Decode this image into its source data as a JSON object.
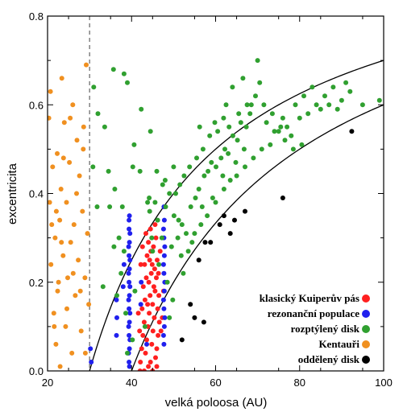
{
  "chart_data": {
    "type": "scatter",
    "xlabel": "velká poloosa (AU)",
    "ylabel": "excentricita",
    "xlim": [
      20,
      100
    ],
    "ylim": [
      0,
      0.8
    ],
    "xticks": [
      20,
      40,
      60,
      80,
      100
    ],
    "yticks": [
      0.0,
      0.2,
      0.4,
      0.6,
      0.8
    ],
    "xtick_labels": [
      "20",
      "40",
      "60",
      "80",
      "100"
    ],
    "ytick_labels": [
      "0.0",
      "0.2",
      "0.4",
      "0.6",
      "0.8"
    ],
    "grid": false,
    "legend_position": "bottom-right",
    "neptune_line": {
      "x": 30,
      "style": "dashed"
    },
    "perihelion_curves": [
      {
        "q": 30
      },
      {
        "q": 40
      }
    ],
    "series": [
      {
        "name": "klasický Kuiperův pás",
        "color": "#ff2020",
        "points": [
          [
            42.1,
            0.02
          ],
          [
            42.4,
            0.05
          ],
          [
            42.7,
            0.08
          ],
          [
            43.0,
            0.11
          ],
          [
            43.3,
            0.04
          ],
          [
            43.6,
            0.07
          ],
          [
            43.9,
            0.1
          ],
          [
            44.2,
            0.13
          ],
          [
            44.5,
            0.02
          ],
          [
            44.8,
            0.06
          ],
          [
            45.1,
            0.09
          ],
          [
            45.4,
            0.12
          ],
          [
            45.7,
            0.03
          ],
          [
            46.0,
            0.05
          ],
          [
            46.3,
            0.08
          ],
          [
            46.6,
            0.11
          ],
          [
            42.5,
            0.14
          ],
          [
            43.2,
            0.16
          ],
          [
            43.8,
            0.15
          ],
          [
            44.4,
            0.17
          ],
          [
            45.0,
            0.15
          ],
          [
            45.6,
            0.18
          ],
          [
            46.2,
            0.14
          ],
          [
            42.8,
            0.19
          ],
          [
            43.5,
            0.21
          ],
          [
            44.1,
            0.2
          ],
          [
            44.7,
            0.22
          ],
          [
            45.3,
            0.19
          ],
          [
            45.9,
            0.21
          ],
          [
            46.5,
            0.17
          ],
          [
            43.1,
            0.24
          ],
          [
            43.7,
            0.26
          ],
          [
            44.3,
            0.25
          ],
          [
            44.9,
            0.24
          ],
          [
            45.5,
            0.23
          ],
          [
            46.1,
            0.25
          ],
          [
            42.6,
            0.28
          ],
          [
            44.0,
            0.29
          ],
          [
            45.2,
            0.28
          ],
          [
            46.4,
            0.22
          ],
          [
            43.4,
            0.31
          ],
          [
            44.6,
            0.27
          ],
          [
            45.8,
            0.3
          ],
          [
            47.0,
            0.09
          ],
          [
            47.3,
            0.12
          ],
          [
            47.6,
            0.18
          ],
          [
            41.9,
            0.09
          ],
          [
            41.6,
            0.13
          ],
          [
            42.2,
            0.24
          ],
          [
            46.8,
            0.27
          ],
          [
            42.0,
            0.0
          ],
          [
            43.0,
            0.0
          ],
          [
            44.0,
            0.01
          ],
          [
            45.0,
            0.0
          ],
          [
            46.0,
            0.01
          ],
          [
            44.5,
            0.32
          ],
          [
            45.6,
            0.33
          ]
        ]
      },
      {
        "name": "rezonanční populace",
        "color": "#2020ee",
        "points": [
          [
            39.4,
            0.02
          ],
          [
            39.5,
            0.05
          ],
          [
            39.4,
            0.08
          ],
          [
            39.5,
            0.11
          ],
          [
            39.4,
            0.14
          ],
          [
            39.5,
            0.17
          ],
          [
            39.4,
            0.2
          ],
          [
            39.5,
            0.23
          ],
          [
            39.4,
            0.26
          ],
          [
            39.5,
            0.29
          ],
          [
            39.4,
            0.32
          ],
          [
            39.5,
            0.35
          ],
          [
            39.3,
            0.04
          ],
          [
            39.6,
            0.07
          ],
          [
            39.3,
            0.1
          ],
          [
            39.6,
            0.13
          ],
          [
            39.3,
            0.16
          ],
          [
            39.6,
            0.19
          ],
          [
            39.3,
            0.22
          ],
          [
            39.6,
            0.25
          ],
          [
            39.3,
            0.28
          ],
          [
            39.6,
            0.31
          ],
          [
            39.4,
            0.34
          ],
          [
            39.5,
            0.01
          ],
          [
            47.7,
            0.06
          ],
          [
            47.8,
            0.1
          ],
          [
            47.7,
            0.14
          ],
          [
            47.8,
            0.18
          ],
          [
            47.7,
            0.22
          ],
          [
            47.8,
            0.26
          ],
          [
            47.7,
            0.3
          ],
          [
            47.8,
            0.34
          ],
          [
            47.7,
            0.37
          ],
          [
            47.6,
            0.08
          ],
          [
            47.9,
            0.12
          ],
          [
            47.6,
            0.16
          ],
          [
            47.9,
            0.2
          ],
          [
            47.6,
            0.24
          ],
          [
            47.9,
            0.28
          ],
          [
            47.6,
            0.32
          ],
          [
            36.4,
            0.08
          ],
          [
            36.5,
            0.12
          ],
          [
            36.4,
            0.16
          ],
          [
            30.2,
            0.05
          ],
          [
            30.4,
            0.02
          ],
          [
            38.0,
            0.19
          ],
          [
            38.2,
            0.24
          ],
          [
            42.2,
            0.15
          ],
          [
            42.3,
            0.2
          ],
          [
            43.6,
            0.06
          ]
        ]
      },
      {
        "name": "rozptýlený disk",
        "color": "#30a030",
        "points": [
          [
            35.7,
            0.68
          ],
          [
            38.2,
            0.67
          ],
          [
            39.0,
            0.65
          ],
          [
            42.3,
            0.59
          ],
          [
            40.3,
            0.46
          ],
          [
            42.0,
            0.45
          ],
          [
            43.8,
            0.38
          ],
          [
            44.2,
            0.39
          ],
          [
            44.3,
            0.36
          ],
          [
            45.6,
            0.38
          ],
          [
            46.2,
            0.34
          ],
          [
            47.4,
            0.42
          ],
          [
            48.1,
            0.37
          ],
          [
            49.0,
            0.4
          ],
          [
            50.1,
            0.35
          ],
          [
            51.2,
            0.34
          ],
          [
            52.0,
            0.33
          ],
          [
            53.0,
            0.31
          ],
          [
            54.1,
            0.37
          ],
          [
            55.2,
            0.39
          ],
          [
            56.0,
            0.41
          ],
          [
            57.3,
            0.44
          ],
          [
            58.2,
            0.45
          ],
          [
            59.0,
            0.47
          ],
          [
            60.1,
            0.46
          ],
          [
            61.3,
            0.48
          ],
          [
            62.2,
            0.5
          ],
          [
            63.0,
            0.49
          ],
          [
            64.1,
            0.53
          ],
          [
            65.2,
            0.52
          ],
          [
            66.0,
            0.56
          ],
          [
            67.3,
            0.55
          ],
          [
            68.2,
            0.58
          ],
          [
            70.0,
            0.7
          ],
          [
            72.1,
            0.56
          ],
          [
            75.0,
            0.54
          ],
          [
            78.0,
            0.53
          ],
          [
            80.0,
            0.57
          ],
          [
            82.0,
            0.58
          ],
          [
            84.0,
            0.6
          ],
          [
            86.0,
            0.62
          ],
          [
            88.0,
            0.64
          ],
          [
            90.0,
            0.61
          ],
          [
            92.0,
            0.63
          ],
          [
            95.0,
            0.6
          ],
          [
            99.0,
            0.61
          ],
          [
            48.0,
            0.43
          ],
          [
            47.2,
            0.3
          ],
          [
            45.0,
            0.27
          ],
          [
            46.5,
            0.24
          ],
          [
            44.8,
            0.3
          ],
          [
            49.5,
            0.28
          ],
          [
            51.0,
            0.3
          ],
          [
            53.5,
            0.27
          ],
          [
            55.0,
            0.31
          ],
          [
            56.5,
            0.33
          ],
          [
            58.0,
            0.35
          ],
          [
            60.0,
            0.38
          ],
          [
            62.0,
            0.41
          ],
          [
            63.5,
            0.43
          ],
          [
            65.0,
            0.44
          ],
          [
            67.0,
            0.46
          ],
          [
            69.0,
            0.48
          ],
          [
            71.0,
            0.5
          ],
          [
            73.0,
            0.51
          ],
          [
            74.0,
            0.54
          ],
          [
            76.0,
            0.57
          ],
          [
            77.0,
            0.55
          ],
          [
            79.0,
            0.6
          ],
          [
            81.0,
            0.62
          ],
          [
            83.0,
            0.64
          ],
          [
            85.0,
            0.59
          ],
          [
            87.0,
            0.6
          ],
          [
            89.0,
            0.59
          ],
          [
            91.0,
            0.65
          ],
          [
            60.5,
            0.54
          ],
          [
            62.5,
            0.6
          ],
          [
            64.0,
            0.64
          ],
          [
            66.5,
            0.66
          ],
          [
            68.5,
            0.6
          ],
          [
            57.0,
            0.5
          ],
          [
            55.5,
            0.48
          ],
          [
            53.8,
            0.46
          ],
          [
            52.5,
            0.44
          ],
          [
            51.5,
            0.42
          ],
          [
            50.5,
            0.4
          ],
          [
            50.0,
            0.46
          ],
          [
            46.0,
            0.45
          ],
          [
            44.5,
            0.54
          ],
          [
            40.6,
            0.51
          ],
          [
            37.8,
            0.37
          ],
          [
            36.0,
            0.41
          ],
          [
            34.5,
            0.45
          ],
          [
            33.6,
            0.55
          ],
          [
            32.0,
            0.58
          ],
          [
            31.0,
            0.64
          ],
          [
            30.8,
            0.46
          ],
          [
            31.8,
            0.37
          ],
          [
            34.8,
            0.37
          ],
          [
            33.2,
            0.19
          ],
          [
            35.8,
            0.28
          ],
          [
            37.0,
            0.3
          ],
          [
            38.2,
            0.27
          ],
          [
            37.5,
            0.22
          ],
          [
            38.6,
            0.13
          ],
          [
            36.5,
            0.17
          ],
          [
            43.2,
            0.1
          ],
          [
            40.8,
            0.18
          ],
          [
            40.2,
            0.07
          ],
          [
            39.0,
            0.04
          ],
          [
            48.5,
            0.2
          ],
          [
            49.8,
            0.16
          ],
          [
            49.0,
            0.12
          ],
          [
            51.8,
            0.26
          ],
          [
            52.3,
            0.22
          ],
          [
            54.4,
            0.29
          ],
          [
            56.8,
            0.37
          ],
          [
            59.3,
            0.39
          ],
          [
            61.7,
            0.44
          ],
          [
            58.6,
            0.53
          ],
          [
            56.2,
            0.55
          ],
          [
            59.8,
            0.56
          ],
          [
            61.9,
            0.57
          ],
          [
            63.2,
            0.55
          ],
          [
            65.5,
            0.58
          ],
          [
            67.5,
            0.6
          ],
          [
            69.5,
            0.62
          ],
          [
            70.5,
            0.65
          ],
          [
            71.5,
            0.6
          ],
          [
            73.5,
            0.58
          ],
          [
            75.5,
            0.55
          ],
          [
            76.5,
            0.52
          ],
          [
            78.5,
            0.5
          ],
          [
            80.5,
            0.51
          ],
          [
            64.8,
            0.47
          ],
          [
            66.8,
            0.5
          ]
        ]
      },
      {
        "name": "Kentauři",
        "color": "#f09020",
        "points": [
          [
            20.3,
            0.57
          ],
          [
            20.5,
            0.38
          ],
          [
            20.8,
            0.24
          ],
          [
            21.2,
            0.46
          ],
          [
            21.5,
            0.13
          ],
          [
            21.8,
            0.3
          ],
          [
            22.0,
            0.06
          ],
          [
            22.3,
            0.49
          ],
          [
            22.6,
            0.2
          ],
          [
            22.9,
            0.34
          ],
          [
            23.2,
            0.41
          ],
          [
            23.4,
            0.66
          ],
          [
            23.7,
            0.26
          ],
          [
            24.0,
            0.56
          ],
          [
            24.3,
            0.1
          ],
          [
            24.5,
            0.38
          ],
          [
            24.8,
            0.21
          ],
          [
            25.2,
            0.47
          ],
          [
            25.5,
            0.29
          ],
          [
            25.8,
            0.04
          ],
          [
            26.0,
            0.6
          ],
          [
            26.3,
            0.33
          ],
          [
            26.6,
            0.17
          ],
          [
            27.0,
            0.52
          ],
          [
            27.3,
            0.25
          ],
          [
            27.6,
            0.44
          ],
          [
            28.0,
            0.09
          ],
          [
            28.3,
            0.36
          ],
          [
            28.6,
            0.55
          ],
          [
            28.9,
            0.21
          ],
          [
            29.2,
            0.69
          ],
          [
            29.5,
            0.31
          ],
          [
            29.8,
            0.15
          ],
          [
            20.7,
            0.63
          ],
          [
            21.0,
            0.33
          ],
          [
            21.6,
            0.1
          ],
          [
            22.1,
            0.36
          ],
          [
            23.0,
            0.01
          ],
          [
            23.8,
            0.48
          ],
          [
            24.6,
            0.14
          ],
          [
            25.4,
            0.57
          ],
          [
            26.1,
            0.22
          ],
          [
            26.9,
            0.4
          ],
          [
            27.8,
            0.18
          ],
          [
            28.5,
            0.5
          ],
          [
            29.0,
            0.04
          ],
          [
            22.4,
            0.18
          ],
          [
            23.3,
            0.29
          ]
        ]
      },
      {
        "name": "oddělený disk",
        "color": "#000000",
        "points": [
          [
            54.0,
            0.15
          ],
          [
            55.0,
            0.12
          ],
          [
            56.0,
            0.25
          ],
          [
            57.5,
            0.29
          ],
          [
            58.8,
            0.29
          ],
          [
            61.0,
            0.33
          ],
          [
            62.0,
            0.35
          ],
          [
            63.5,
            0.31
          ],
          [
            64.5,
            0.34
          ],
          [
            67.0,
            0.36
          ],
          [
            76.0,
            0.39
          ],
          [
            92.4,
            0.54
          ],
          [
            57.2,
            0.11
          ],
          [
            52.0,
            0.07
          ]
        ]
      }
    ]
  }
}
